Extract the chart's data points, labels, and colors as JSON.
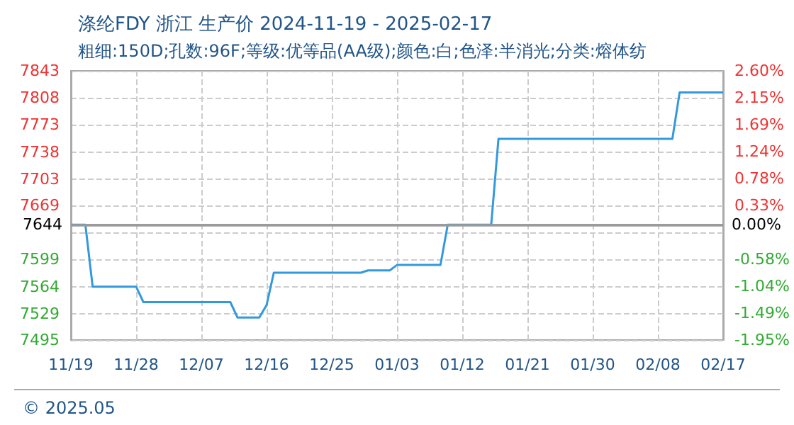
{
  "chart_data": {
    "type": "step",
    "title": "涤纶FDY 浙江 生产价 2024-11-19 - 2025-02-17",
    "subtitle": "粗细:150D;孔数:96F;等级:优等品(AA级);颜色:白;色泽:半消光;分类:熔体纺",
    "x": [
      "2024-11-19",
      "2024-11-21",
      "2024-11-22",
      "2024-11-28",
      "2024-11-29",
      "2024-12-11",
      "2024-12-12",
      "2024-12-15",
      "2024-12-16",
      "2024-12-17",
      "2024-12-29",
      "2024-12-30",
      "2025-01-02",
      "2025-01-03",
      "2025-01-09",
      "2025-01-10",
      "2025-01-16",
      "2025-01-17",
      "2025-02-10",
      "2025-02-11",
      "2025-02-17"
    ],
    "series": [
      {
        "color": "#3399dd",
        "values": [
          7644,
          7644,
          7564,
          7564,
          7544,
          7544,
          7524,
          7524,
          7540,
          7582,
          7582,
          7585,
          7585,
          7592,
          7592,
          7644,
          7644,
          7755,
          7755,
          7815,
          7815
        ]
      }
    ],
    "xlim": [
      "2024-11-19",
      "2025-02-17"
    ],
    "xticks": [
      {
        "value": "2024-11-19",
        "label": "11/19"
      },
      {
        "value": "2024-11-28",
        "label": "11/28"
      },
      {
        "value": "2024-12-07",
        "label": "12/07"
      },
      {
        "value": "2024-12-16",
        "label": "12/16"
      },
      {
        "value": "2024-12-25",
        "label": "12/25"
      },
      {
        "value": "2025-01-03",
        "label": "01/03"
      },
      {
        "value": "2025-01-12",
        "label": "01/12"
      },
      {
        "value": "2025-01-21",
        "label": "01/21"
      },
      {
        "value": "2025-01-30",
        "label": "01/30"
      },
      {
        "value": "2025-02-08",
        "label": "02/08"
      },
      {
        "value": "2025-02-17",
        "label": "02/17"
      }
    ],
    "ylim": [
      7495,
      7843
    ],
    "yticks": [
      7495,
      7529,
      7564,
      7599,
      {
        "value": 7634,
        "label": null
      },
      7669,
      7703,
      7738,
      7773,
      7808,
      7843
    ],
    "y2lim": [
      -1.949,
      2.603
    ],
    "y2ticks": [
      {
        "value": -1.949,
        "label": "-1.95%"
      },
      {
        "value": -1.494,
        "label": "-1.49%"
      },
      {
        "value": -1.038,
        "label": "-1.04%"
      },
      {
        "value": -0.583,
        "label": "-0.58%"
      },
      {
        "value": -0.128,
        "label": null
      },
      {
        "value": 0.327,
        "label": "0.33%"
      },
      {
        "value": 0.783,
        "label": "0.78%"
      },
      {
        "value": 1.238,
        "label": "1.24%"
      },
      {
        "value": 1.693,
        "label": "1.69%"
      },
      {
        "value": 2.148,
        "label": "2.15%"
      },
      {
        "value": 2.603,
        "label": "2.60%"
      }
    ],
    "ref_lines": [
      {
        "axis": "y",
        "value": 7644,
        "label": "7644"
      },
      {
        "axis": "y2",
        "value": 0,
        "label": "0.00%"
      }
    ],
    "annotations": [
      "© 2025.05"
    ],
    "grid": true,
    "marker": "none",
    "line_style": "solid"
  }
}
